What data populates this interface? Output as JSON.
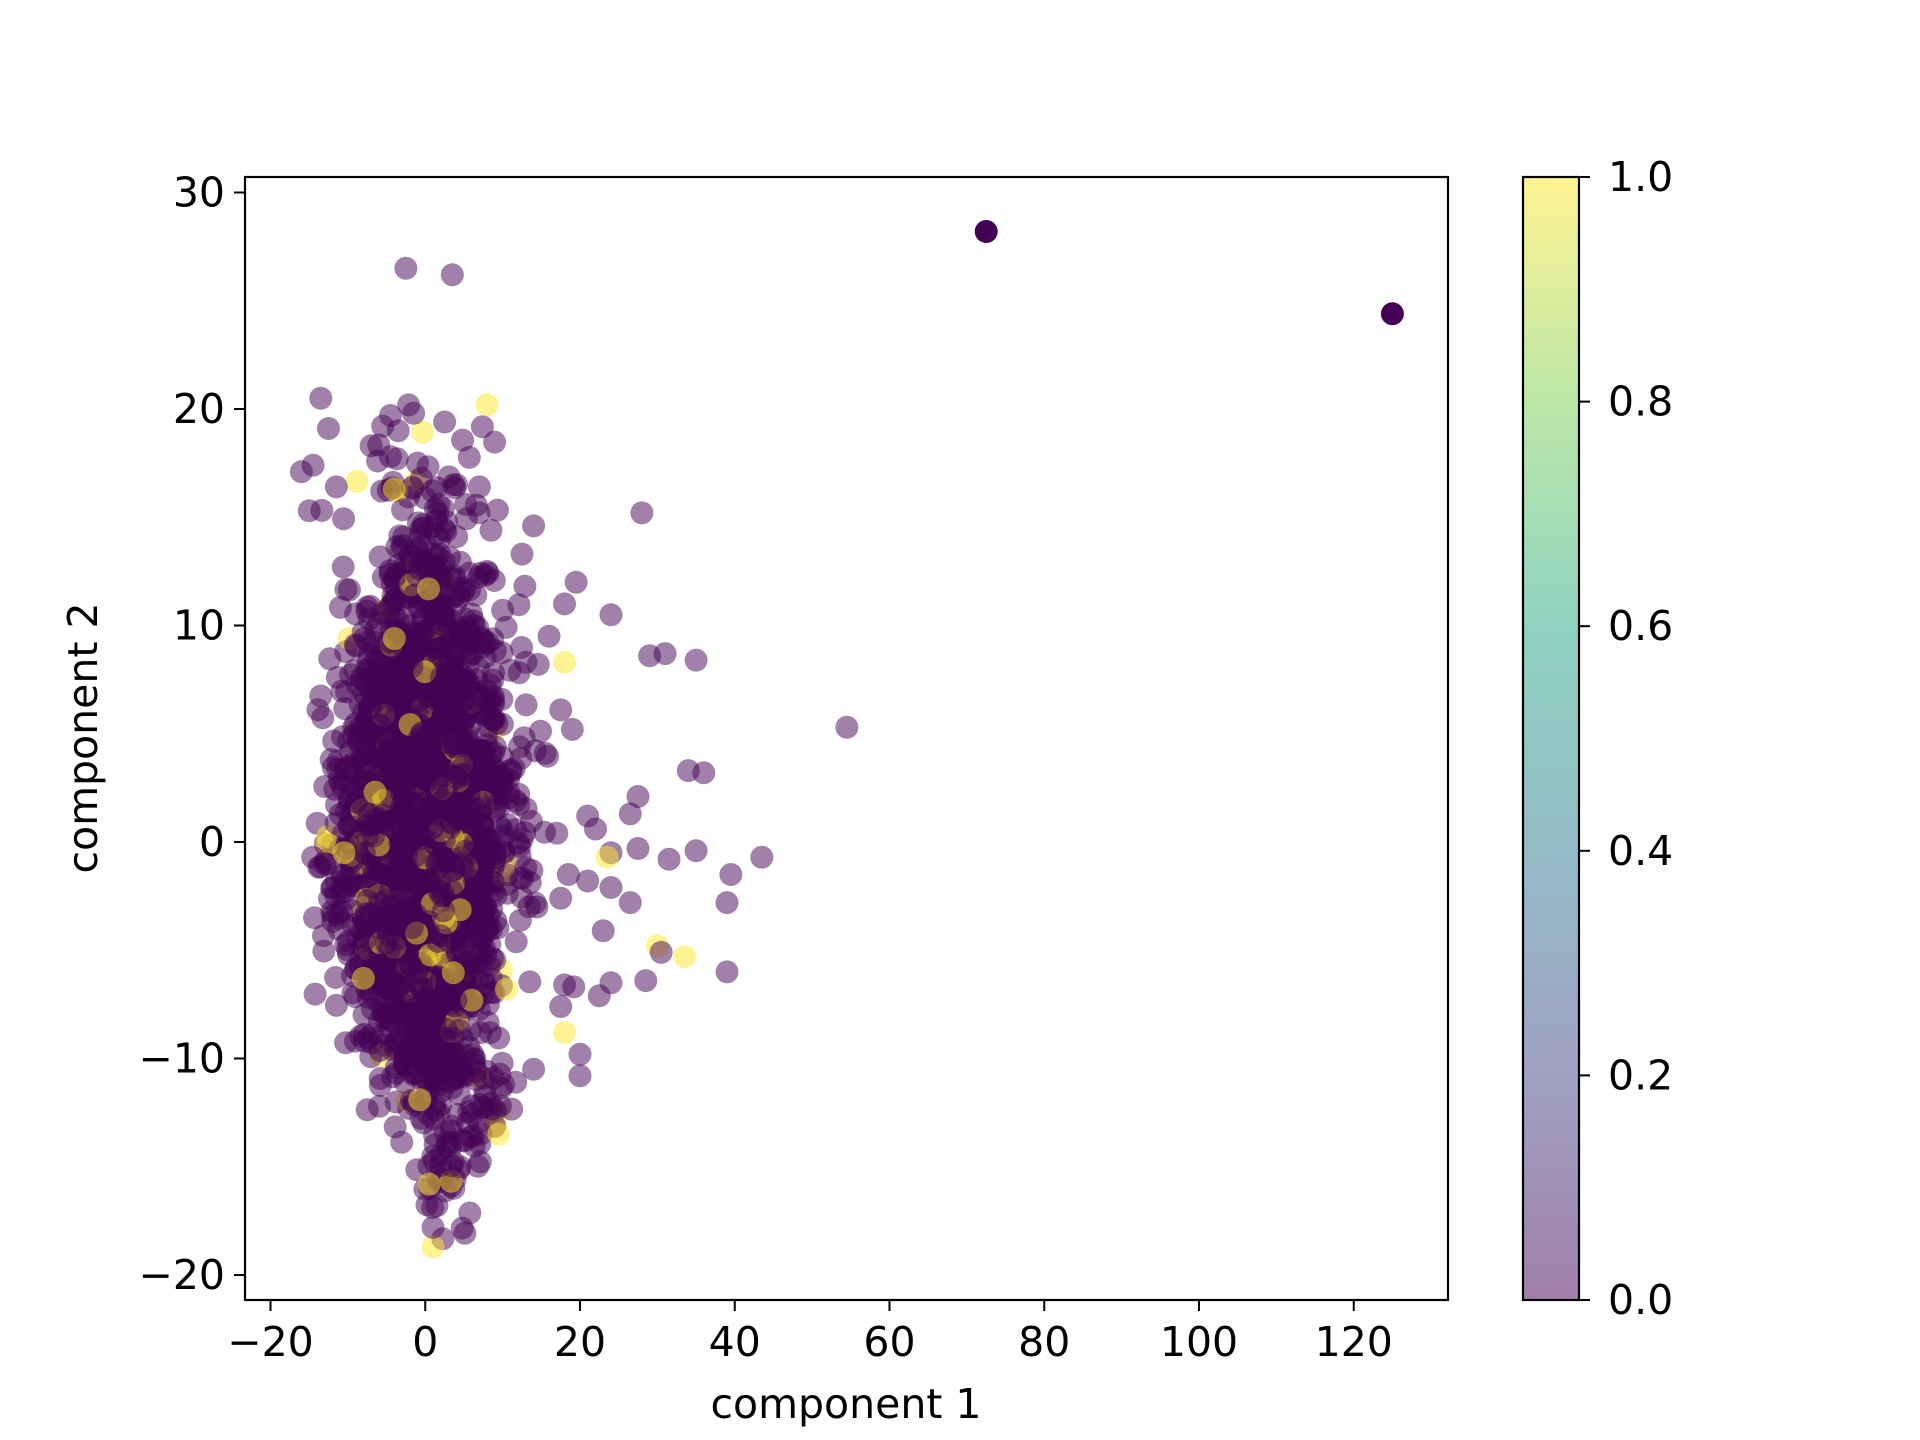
{
  "chart_data": {
    "type": "scatter",
    "title": "",
    "xlabel": "component 1",
    "ylabel": "component 2",
    "xlim": [
      -25,
      132
    ],
    "ylim": [
      -21,
      30.5
    ],
    "xticks": [
      -20,
      0,
      20,
      40,
      60,
      80,
      100,
      120
    ],
    "yticks": [
      -20,
      -10,
      0,
      10,
      20,
      30
    ],
    "xtick_labels": [
      "−20",
      "0",
      "20",
      "40",
      "60",
      "80",
      "100",
      "120"
    ],
    "ytick_labels": [
      "−20",
      "−10",
      "0",
      "10",
      "20",
      "30"
    ],
    "grid": false,
    "marker_alpha": 0.5,
    "colormap": "viridis",
    "colorbar": {
      "range": [
        0.0,
        1.0
      ],
      "ticks": [
        0.0,
        0.2,
        0.4,
        0.6,
        0.8,
        1.0
      ],
      "tick_labels": [
        "0.0",
        "0.2",
        "0.4",
        "0.6",
        "0.8",
        "1.0"
      ],
      "colors": [
        "#440154",
        "#414487",
        "#2a788e",
        "#22a884",
        "#7ad151",
        "#fde725"
      ]
    },
    "cluster": {
      "x_center": -1.5,
      "y_center": 0.5,
      "x_min": -15,
      "x_max": 20,
      "y_min": -18.5,
      "y_max": 21,
      "approx_points": 3000,
      "dominant_color_value": 0.0
    },
    "points": [
      {
        "x": 72.5,
        "y": 28.2,
        "c": 0.0
      },
      {
        "x": 125,
        "y": 24.4,
        "c": 0.0
      },
      {
        "x": -2.5,
        "y": 26.5,
        "c": 0.0
      },
      {
        "x": 3.5,
        "y": 26.2,
        "c": 0.0
      },
      {
        "x": -13.5,
        "y": 20.5,
        "c": 0.0
      },
      {
        "x": -12.5,
        "y": 19.1,
        "c": 0.0
      },
      {
        "x": -1.5,
        "y": 19.8,
        "c": 0.0
      },
      {
        "x": 2.5,
        "y": 19.4,
        "c": 0.0
      },
      {
        "x": 8,
        "y": 20.2,
        "c": 1.0
      },
      {
        "x": -16,
        "y": 17.1,
        "c": 0.0
      },
      {
        "x": -14.5,
        "y": 17.4,
        "c": 0.0
      },
      {
        "x": -7,
        "y": 18.3,
        "c": 0.0
      },
      {
        "x": -5.5,
        "y": 19.2,
        "c": 0.0
      },
      {
        "x": -3.5,
        "y": 19.0,
        "c": 0.0
      },
      {
        "x": -4.5,
        "y": 17.8,
        "c": 0.0
      },
      {
        "x": -1,
        "y": 17.5,
        "c": 0.0
      },
      {
        "x": 7,
        "y": 16.4,
        "c": 0.0
      },
      {
        "x": -11.5,
        "y": 16.4,
        "c": 0.0
      },
      {
        "x": -4,
        "y": 16.3,
        "c": 1.0
      },
      {
        "x": -0.5,
        "y": 16.8,
        "c": 0.0
      },
      {
        "x": -15,
        "y": 15.3,
        "c": 0.0
      },
      {
        "x": 8.5,
        "y": 14.4,
        "c": 0.0
      },
      {
        "x": 14,
        "y": 14.6,
        "c": 0.0
      },
      {
        "x": 28,
        "y": 15.2,
        "c": 0.0
      },
      {
        "x": 12.5,
        "y": 13.3,
        "c": 0.0
      },
      {
        "x": 19.5,
        "y": 12.0,
        "c": 0.0
      },
      {
        "x": 18,
        "y": 11.0,
        "c": 0.0
      },
      {
        "x": 24,
        "y": 10.5,
        "c": 0.0
      },
      {
        "x": 10,
        "y": 10.7,
        "c": 0.0
      },
      {
        "x": 8,
        "y": 12.5,
        "c": 0.0
      },
      {
        "x": 16,
        "y": 9.5,
        "c": 0.0
      },
      {
        "x": 18,
        "y": 8.3,
        "c": 1.0
      },
      {
        "x": 29,
        "y": 8.6,
        "c": 0.0
      },
      {
        "x": 31,
        "y": 8.7,
        "c": 0.0
      },
      {
        "x": 35,
        "y": 8.4,
        "c": 0.0
      },
      {
        "x": 13,
        "y": 8.3,
        "c": 0.0
      },
      {
        "x": 17.5,
        "y": 6.1,
        "c": 0.0
      },
      {
        "x": 19,
        "y": 5.2,
        "c": 0.0
      },
      {
        "x": 15.5,
        "y": 4.1,
        "c": 0.0
      },
      {
        "x": 54.5,
        "y": 5.3,
        "c": 0.0
      },
      {
        "x": 34,
        "y": 3.3,
        "c": 0.0
      },
      {
        "x": 36,
        "y": 3.2,
        "c": 0.0
      },
      {
        "x": 27.5,
        "y": 2.1,
        "c": 0.0
      },
      {
        "x": 21,
        "y": 1.2,
        "c": 0.0
      },
      {
        "x": 26.5,
        "y": 1.3,
        "c": 0.0
      },
      {
        "x": 22,
        "y": 0.6,
        "c": 0.0
      },
      {
        "x": 17,
        "y": 0.4,
        "c": 0.0
      },
      {
        "x": 24,
        "y": -0.5,
        "c": 0.0
      },
      {
        "x": 27.5,
        "y": -0.3,
        "c": 0.0
      },
      {
        "x": 31.5,
        "y": -0.8,
        "c": 0.0
      },
      {
        "x": 35,
        "y": -0.4,
        "c": 0.0
      },
      {
        "x": 39.5,
        "y": -1.5,
        "c": 0.0
      },
      {
        "x": 43.5,
        "y": -0.7,
        "c": 0.0
      },
      {
        "x": 39,
        "y": -2.8,
        "c": 0.0
      },
      {
        "x": 23.5,
        "y": -0.7,
        "c": 1.0
      },
      {
        "x": 18.5,
        "y": -1.5,
        "c": 0.0
      },
      {
        "x": 21,
        "y": -1.8,
        "c": 0.0
      },
      {
        "x": 24,
        "y": -2.1,
        "c": 0.0
      },
      {
        "x": 26.5,
        "y": -2.8,
        "c": 0.0
      },
      {
        "x": 17.5,
        "y": -2.6,
        "c": 0.0
      },
      {
        "x": 23,
        "y": -4.1,
        "c": 0.0
      },
      {
        "x": 30,
        "y": -4.8,
        "c": 1.0
      },
      {
        "x": 33.5,
        "y": -5.3,
        "c": 1.0
      },
      {
        "x": 30.5,
        "y": -5.1,
        "c": 0.0
      },
      {
        "x": 39,
        "y": -6.0,
        "c": 0.0
      },
      {
        "x": 28.5,
        "y": -6.4,
        "c": 0.0
      },
      {
        "x": 24,
        "y": -6.5,
        "c": 0.0
      },
      {
        "x": 22.5,
        "y": -7.1,
        "c": 0.0
      },
      {
        "x": 18,
        "y": -6.6,
        "c": 0.0
      },
      {
        "x": 17.5,
        "y": -7.6,
        "c": 0.0
      },
      {
        "x": 18,
        "y": -8.8,
        "c": 1.0
      },
      {
        "x": 20,
        "y": -9.8,
        "c": 0.0
      },
      {
        "x": 20,
        "y": -10.8,
        "c": 0.0
      },
      {
        "x": 14,
        "y": -10.5,
        "c": 0.0
      },
      {
        "x": 10.5,
        "y": -6.8,
        "c": 1.0
      },
      {
        "x": 9.5,
        "y": -13.5,
        "c": 1.0
      },
      {
        "x": -13,
        "y": -1.0,
        "c": 0.0
      },
      {
        "x": -10.5,
        "y": -0.5,
        "c": 1.0
      },
      {
        "x": -8,
        "y": -6.3,
        "c": 1.0
      },
      {
        "x": -6.5,
        "y": 2.3,
        "c": 1.0
      },
      {
        "x": -4,
        "y": 9.4,
        "c": 1.0
      },
      {
        "x": 1,
        "y": -18.7,
        "c": 1.0
      },
      {
        "x": 1,
        "y": -17.8,
        "c": 0.0
      },
      {
        "x": 1.5,
        "y": -16.8,
        "c": 0.0
      },
      {
        "x": 0.5,
        "y": -15.8,
        "c": 1.0
      },
      {
        "x": 4.5,
        "y": -15.0,
        "c": 0.0
      }
    ]
  }
}
